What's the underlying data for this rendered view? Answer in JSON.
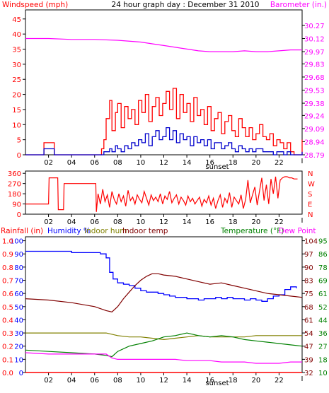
{
  "colors": {
    "windspeed": "#ff0000",
    "wind_avg": "#0000cc",
    "barometer": "#ff00ff",
    "direction": "#ff0000",
    "rainfall": "#ff0000",
    "humidity": "#0000ff",
    "indoor_hum": "#808000",
    "indoor_temp": "#800000",
    "temperature": "#008000",
    "dew_point": "#ff00ff",
    "title": "#000000",
    "grid": "#000000"
  },
  "chart_data": [
    {
      "type": "line",
      "title": "24 hour graph day : December 31 2010",
      "ylabel_left": "Windspeed (mph)",
      "ylabel_right": "Barometer (in.)",
      "x_tick_labels": [
        "02",
        "04",
        "06",
        "08",
        "10",
        "12",
        "14",
        "16",
        "18",
        "20",
        "22"
      ],
      "x_ticks": [
        2,
        4,
        6,
        8,
        10,
        12,
        14,
        16,
        18,
        20,
        22
      ],
      "x_end_tick": "I",
      "x_annotation": {
        "label": "sunset",
        "x": 16.8
      },
      "xlim": [
        0,
        24
      ],
      "y_left_ticks": [
        "0",
        "5",
        "10",
        "15",
        "20",
        "25",
        "30",
        "35",
        "40",
        "45"
      ],
      "ylim_left": [
        0,
        48
      ],
      "y_right_ticks": [
        "28.79",
        "28.94",
        "29.09",
        "29.24",
        "29.38",
        "29.53",
        "29.68",
        "29.83",
        "29.97",
        "30.12",
        "30.27"
      ],
      "series": [
        {
          "role": "gust",
          "x": [
            0,
            1,
            1.5,
            1.6,
            1.8,
            2.0,
            2.2,
            2.5,
            3,
            4,
            5,
            6,
            6.3,
            6.6,
            6.8,
            7.0,
            7.3,
            7.5,
            7.8,
            8.0,
            8.3,
            8.6,
            8.9,
            9.2,
            9.5,
            9.8,
            10.1,
            10.4,
            10.7,
            11.0,
            11.3,
            11.6,
            11.9,
            12.2,
            12.5,
            12.8,
            13.1,
            13.4,
            13.7,
            14.0,
            14.3,
            14.6,
            14.9,
            15.2,
            15.5,
            15.8,
            16.1,
            16.4,
            16.7,
            17.0,
            17.3,
            17.6,
            17.9,
            18.2,
            18.5,
            18.8,
            19.1,
            19.4,
            19.7,
            20.0,
            20.3,
            20.6,
            20.9,
            21.2,
            21.5,
            21.8,
            22.1,
            22.4,
            22.7,
            23.0,
            23.3,
            23.6,
            24
          ],
          "y": [
            0,
            0,
            0,
            4,
            4,
            4,
            4,
            0,
            0,
            0,
            0,
            0,
            0,
            2,
            5,
            12,
            18,
            8,
            14,
            17,
            9,
            16,
            12,
            15,
            10,
            18,
            14,
            20,
            11,
            16,
            19,
            13,
            17,
            21,
            15,
            22,
            12,
            20,
            14,
            17,
            11,
            19,
            13,
            15,
            10,
            16,
            8,
            12,
            14,
            7,
            11,
            13,
            8,
            6,
            12,
            9,
            6,
            9,
            5,
            7,
            10,
            6,
            5,
            7,
            3,
            5,
            4,
            2,
            4,
            1,
            0,
            0,
            5
          ]
        },
        {
          "role": "average",
          "x": [
            0,
            1,
            1.5,
            1.6,
            1.8,
            2.0,
            2.2,
            2.5,
            3,
            4,
            5,
            6,
            6.3,
            6.6,
            6.8,
            7.0,
            7.3,
            7.5,
            7.8,
            8.0,
            8.3,
            8.6,
            8.9,
            9.2,
            9.5,
            9.8,
            10.1,
            10.4,
            10.7,
            11.0,
            11.3,
            11.6,
            11.9,
            12.2,
            12.5,
            12.8,
            13.1,
            13.4,
            13.7,
            14.0,
            14.3,
            14.6,
            14.9,
            15.2,
            15.5,
            15.8,
            16.1,
            16.4,
            16.7,
            17.0,
            17.3,
            17.6,
            17.9,
            18.2,
            18.5,
            18.8,
            19.1,
            19.4,
            19.7,
            20.0,
            20.3,
            20.6,
            20.9,
            21.2,
            21.5,
            21.8,
            22.1,
            22.4,
            22.7,
            23.0,
            23.3,
            23.6,
            24
          ],
          "y": [
            0,
            0,
            0,
            2,
            2,
            2,
            2,
            0,
            0,
            0,
            0,
            0,
            0,
            0,
            1,
            1,
            2,
            1,
            3,
            2,
            1,
            3,
            2,
            4,
            3,
            5,
            4,
            7,
            3,
            6,
            8,
            5,
            6,
            9,
            5,
            8,
            4,
            7,
            5,
            6,
            3,
            6,
            4,
            5,
            3,
            5,
            2,
            4,
            4,
            2,
            3,
            4,
            2,
            1,
            3,
            2,
            1,
            2,
            1,
            2,
            2,
            1,
            1,
            1,
            0,
            1,
            1,
            0,
            1,
            0,
            0,
            0,
            1
          ]
        },
        {
          "role": "barometer",
          "x": [
            0,
            2,
            4,
            6,
            8,
            10,
            11,
            12,
            13,
            14,
            15,
            16,
            17,
            18,
            19,
            20,
            21,
            22,
            23,
            24
          ],
          "y": [
            30.12,
            30.12,
            30.11,
            30.11,
            30.1,
            30.08,
            30.06,
            30.04,
            30.02,
            30.0,
            29.98,
            29.97,
            29.97,
            29.97,
            29.98,
            29.97,
            29.97,
            29.98,
            29.99,
            29.99
          ]
        }
      ]
    },
    {
      "type": "line",
      "series_role": "wind_direction",
      "y_left_ticks": [
        "0",
        "90",
        "180",
        "270",
        "360"
      ],
      "ylim": [
        0,
        380
      ],
      "y_right_labels": [
        "N",
        "W",
        "S",
        "E",
        "N"
      ],
      "x_tick_labels": [
        "02",
        "04",
        "06",
        "08",
        "10",
        "12",
        "14",
        "16",
        "18",
        "20",
        "22"
      ],
      "x_end_tick": "I",
      "xlim": [
        0,
        24
      ],
      "series": [
        {
          "role": "direction",
          "x": [
            0,
            2,
            2.05,
            2.8,
            2.85,
            3.3,
            3.35,
            4.0,
            4.05,
            6.1,
            6.15,
            6.3,
            6.5,
            6.7,
            6.9,
            7.1,
            7.3,
            7.5,
            7.7,
            7.9,
            8.1,
            8.3,
            8.5,
            8.7,
            8.9,
            9.1,
            9.3,
            9.5,
            9.7,
            9.9,
            10.1,
            10.3,
            10.5,
            10.7,
            10.9,
            11.1,
            11.3,
            11.5,
            11.7,
            11.9,
            12.1,
            12.3,
            12.5,
            12.7,
            12.9,
            13.1,
            13.3,
            13.5,
            13.7,
            13.9,
            14.1,
            14.3,
            14.5,
            14.7,
            14.9,
            15.1,
            15.3,
            15.5,
            15.7,
            15.9,
            16.1,
            16.3,
            16.5,
            16.7,
            16.9,
            17.1,
            17.3,
            17.5,
            17.7,
            17.9,
            18.1,
            18.3,
            18.5,
            18.7,
            18.9,
            19.1,
            19.3,
            19.5,
            19.7,
            19.9,
            20.1,
            20.3,
            20.5,
            20.7,
            20.9,
            21.1,
            21.3,
            21.5,
            21.7,
            21.9,
            22.1,
            22.3,
            22.5,
            22.7,
            22.9,
            23.1,
            23.3,
            23.6
          ],
          "y": [
            90,
            90,
            320,
            320,
            40,
            40,
            270,
            270,
            270,
            270,
            20,
            180,
            90,
            220,
            110,
            170,
            60,
            200,
            130,
            90,
            180,
            110,
            160,
            70,
            210,
            120,
            150,
            90,
            170,
            130,
            100,
            200,
            140,
            80,
            170,
            120,
            150,
            110,
            180,
            90,
            160,
            130,
            200,
            100,
            140,
            170,
            90,
            150,
            120,
            80,
            160,
            110,
            140,
            90,
            120,
            150,
            70,
            130,
            100,
            160,
            80,
            140,
            50,
            120,
            170,
            60,
            140,
            100,
            190,
            60,
            150,
            120,
            90,
            170,
            50,
            130,
            300,
            100,
            170,
            240,
            80,
            200,
            320,
            120,
            260,
            90,
            310,
            180,
            330,
            140,
            300,
            320,
            330,
            330,
            320,
            320,
            310,
            310
          ]
        }
      ]
    },
    {
      "type": "line",
      "ylabel_left": "Rainfall (in)",
      "legend_left": [
        "Humidity %",
        "Indoor hum",
        "Indoor temp"
      ],
      "legend_right": [
        "Temperature (°F)",
        "Dew Point"
      ],
      "x_tick_labels": [
        "02",
        "04",
        "06",
        "08",
        "10",
        "12",
        "14",
        "16",
        "18",
        "20",
        "22"
      ],
      "x_end_tick": "I",
      "x_annotation": {
        "label": "sunset",
        "x": 16.8
      },
      "xlim": [
        0,
        24
      ],
      "y_rain_ticks": [
        "0.0",
        "0.1",
        "0.2",
        "0.3",
        "0.4",
        "0.5",
        "0.6",
        "0.7",
        "0.8",
        "0.9",
        "1.0"
      ],
      "y_humidity_ticks": [
        "0",
        "10",
        "20",
        "30",
        "40",
        "50",
        "60",
        "70",
        "80",
        "90",
        "100"
      ],
      "y_indoor_temp_ticks": [
        "32",
        "39",
        "47",
        "54",
        "61",
        "68",
        "75",
        "83",
        "90",
        "97",
        "104"
      ],
      "y_temperature_ticks": [
        "10",
        "18",
        "27",
        "36",
        "44",
        "52",
        "61",
        "69",
        "78",
        "86",
        "95"
      ],
      "ylim_percent": [
        0,
        103
      ],
      "series": [
        {
          "role": "rainfall",
          "x": [
            0,
            24
          ],
          "y": [
            0.0,
            0.0
          ]
        },
        {
          "role": "humidity",
          "x": [
            0,
            2,
            4,
            6,
            6.5,
            7,
            7.3,
            7.6,
            8,
            8.5,
            9,
            9.5,
            10,
            10.5,
            11,
            11.5,
            12,
            12.5,
            13,
            13.5,
            14,
            14.5,
            15,
            15.5,
            16,
            16.5,
            17,
            17.5,
            18,
            18.5,
            19,
            19.5,
            20,
            20.5,
            21,
            21.5,
            22,
            22.5,
            23,
            23.5
          ],
          "y": [
            92,
            92,
            91,
            91,
            90,
            87,
            76,
            71,
            68,
            67,
            66,
            64,
            62,
            61,
            61,
            60,
            59,
            58,
            57,
            57,
            56,
            56,
            55,
            56,
            56,
            57,
            56,
            57,
            56,
            56,
            55,
            56,
            55,
            54,
            56,
            58,
            59,
            63,
            65,
            64
          ]
        },
        {
          "role": "indoor_temp",
          "x": [
            0,
            2,
            4,
            6,
            7,
            7.5,
            8,
            8.5,
            9,
            9.5,
            10,
            10.5,
            11,
            11.5,
            12,
            13,
            14,
            15,
            16,
            17,
            18,
            19,
            20,
            21,
            22,
            23,
            24
          ],
          "y": [
            56,
            55,
            53,
            50,
            47,
            46,
            50,
            56,
            61,
            66,
            70,
            73,
            75,
            75,
            74,
            73,
            71,
            69,
            67,
            68,
            66,
            64,
            62,
            60,
            59,
            58,
            57
          ]
        },
        {
          "role": "indoor_hum",
          "x": [
            0,
            2,
            4,
            6,
            7,
            7.5,
            8,
            9,
            10,
            11,
            12,
            13,
            14,
            15,
            16,
            17,
            18,
            19,
            20,
            21,
            22,
            23,
            24
          ],
          "y": [
            30,
            30,
            30,
            30,
            30,
            29,
            28,
            27,
            27,
            26,
            25,
            26,
            27,
            28,
            27,
            27,
            27,
            27,
            28,
            28,
            28,
            28,
            28
          ]
        },
        {
          "role": "temperature",
          "x": [
            0,
            2,
            4,
            6,
            7,
            7.5,
            8,
            9,
            10,
            11,
            12,
            13,
            14,
            15,
            16,
            17,
            18,
            19,
            20,
            21,
            22,
            23,
            24
          ],
          "y": [
            17,
            16,
            15,
            14,
            13,
            12,
            16,
            20,
            22,
            24,
            27,
            28,
            30,
            28,
            27,
            28,
            27,
            25,
            24,
            23,
            22,
            21,
            20
          ]
        },
        {
          "role": "dew_point",
          "x": [
            0,
            2,
            4,
            6,
            7,
            7.5,
            8,
            9,
            10,
            11,
            12,
            13,
            14,
            15,
            16,
            17,
            18,
            19,
            20,
            21,
            22,
            23,
            24
          ],
          "y": [
            15,
            14,
            14,
            14,
            14,
            11,
            10,
            10,
            10,
            10,
            10,
            10,
            9,
            9,
            9,
            8,
            8,
            8,
            7,
            7,
            7,
            8,
            8
          ]
        }
      ]
    }
  ]
}
